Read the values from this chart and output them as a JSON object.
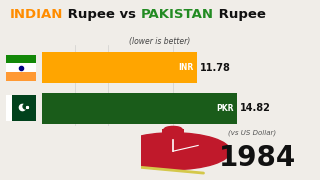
{
  "title_parts": [
    {
      "text": "INDIAN",
      "color": "#FF8C00"
    },
    {
      "text": " Rupee vs ",
      "color": "#111111"
    },
    {
      "text": "PAKISTAN",
      "color": "#228B22"
    },
    {
      "text": " Rupee",
      "color": "#111111"
    }
  ],
  "subtitle": "(lower is better)",
  "subtitle_color": "#444444",
  "bars": [
    {
      "label": "INR",
      "value": 11.78,
      "color": "#FFA500"
    },
    {
      "label": "PKR",
      "value": 14.82,
      "color": "#1a5c1a"
    }
  ],
  "max_val": 16.5,
  "year": "1984",
  "year_sublabel": "(vs US Dollar)",
  "background_color": "#f0ede8",
  "stopwatch_color": "#c0192b",
  "india_flag_colors": [
    "#FF9933",
    "#FFFFFF",
    "#138808"
  ],
  "india_chakra_color": "#000080",
  "pakistan_flag_green": "#01411C",
  "tick_vals": [
    2.5,
    5.0,
    10.0
  ],
  "diag_line_color": "#d4c84a"
}
